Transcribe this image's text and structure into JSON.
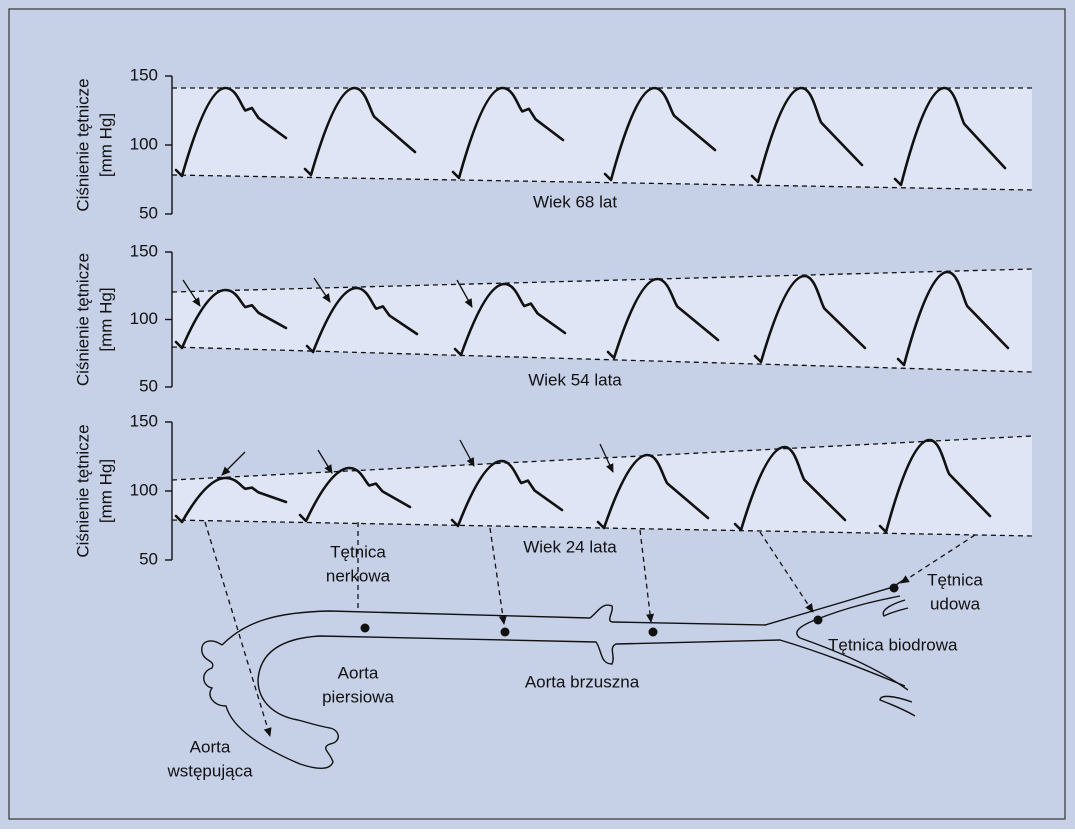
{
  "panels": [
    {
      "y_label": "Ciśnienie tętnicze",
      "y_unit": "[mm Hg]",
      "yticks": [
        50,
        100,
        150
      ],
      "age": "Wiek 68 lat"
    },
    {
      "y_label": "Ciśnienie tętnicze",
      "y_unit": "[mm Hg]",
      "yticks": [
        50,
        100,
        150
      ],
      "age": "Wiek 54 lata"
    },
    {
      "y_label": "Ciśnienie tętnicze",
      "y_unit": "[mm Hg]",
      "yticks": [
        50,
        100,
        150
      ],
      "age": "Wiek 24 lata"
    }
  ],
  "labels": {
    "renal": [
      "Tętnica",
      "nerkowa"
    ],
    "femoral": [
      "Tętnica",
      "udowa"
    ],
    "iliac": "Tętnica biodrowa",
    "thoracic": [
      "Aorta",
      "piersiowa"
    ],
    "abdominal": "Aorta brzuszna",
    "ascending": [
      "Aorta",
      "wstępująca"
    ]
  }
}
